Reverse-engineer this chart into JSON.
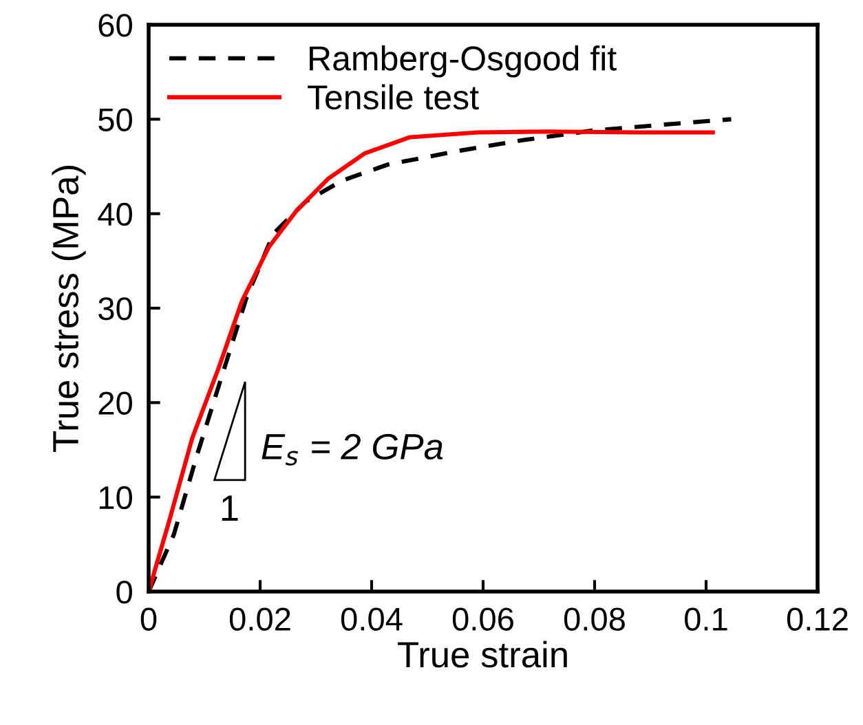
{
  "chart_data": {
    "type": "line",
    "xlabel": "True strain",
    "ylabel": "True stress (MPa)",
    "xlim": [
      0,
      0.12
    ],
    "xticks": [
      0,
      0.02,
      0.04,
      0.06,
      0.08,
      0.1,
      0.12
    ],
    "ylim": [
      0,
      60
    ],
    "yticks": [
      0,
      10,
      20,
      30,
      40,
      50,
      60
    ],
    "grid": false,
    "legend": "top left",
    "annotations": [
      "E$_{s}$ = 2 GPa",
      "1"
    ],
    "series": [
      {
        "name": "Ramberg-Osgood fit",
        "color": "#000000",
        "line_style": "dashed",
        "x": [
          0,
          0.0045,
          0.0086,
          0.0127,
          0.0176,
          0.0224,
          0.0282,
          0.0347,
          0.0429,
          0.0551,
          0.0673,
          0.0796,
          0.0918,
          0.1045
        ],
        "values": [
          0,
          6.0,
          14.3,
          22.0,
          31.2,
          37.9,
          41.3,
          43.5,
          45.2,
          46.6,
          47.8,
          48.8,
          49.4,
          50.0
        ]
      },
      {
        "name": "Tensile test",
        "color": "#ff0000",
        "line_style": "solid",
        "x": [
          0,
          0.0037,
          0.0078,
          0.0127,
          0.0167,
          0.0216,
          0.0265,
          0.0322,
          0.0388,
          0.0469,
          0.059,
          0.0714,
          0.0878,
          0.1012
        ],
        "values": [
          0,
          7.5,
          16.2,
          23.9,
          30.7,
          36.5,
          40.3,
          43.7,
          46.4,
          48.1,
          48.6,
          48.7,
          48.6,
          48.6
        ]
      }
    ]
  }
}
